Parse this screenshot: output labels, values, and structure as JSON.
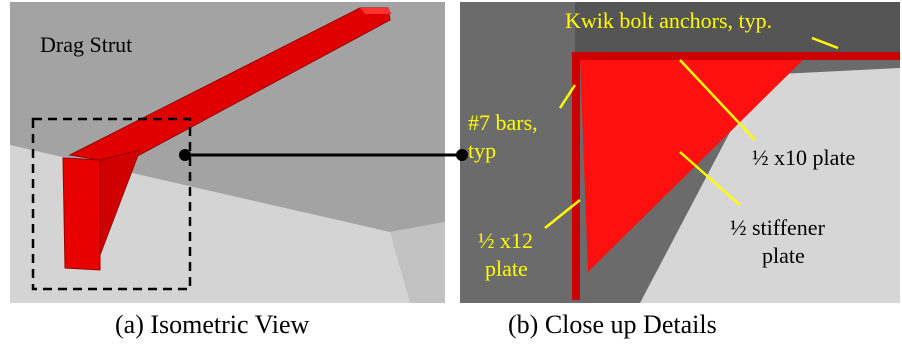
{
  "panel_a": {
    "label": "Drag Strut",
    "caption": "(a) Isometric View"
  },
  "panel_b": {
    "labels": [
      "Kwik bolt  anchors, typ.",
      "#7 bars,",
      "typ",
      "½ x10 plate",
      "½ stiffener",
      "plate",
      "½ x12",
      "plate"
    ],
    "caption": "(b) Close up Details"
  }
}
